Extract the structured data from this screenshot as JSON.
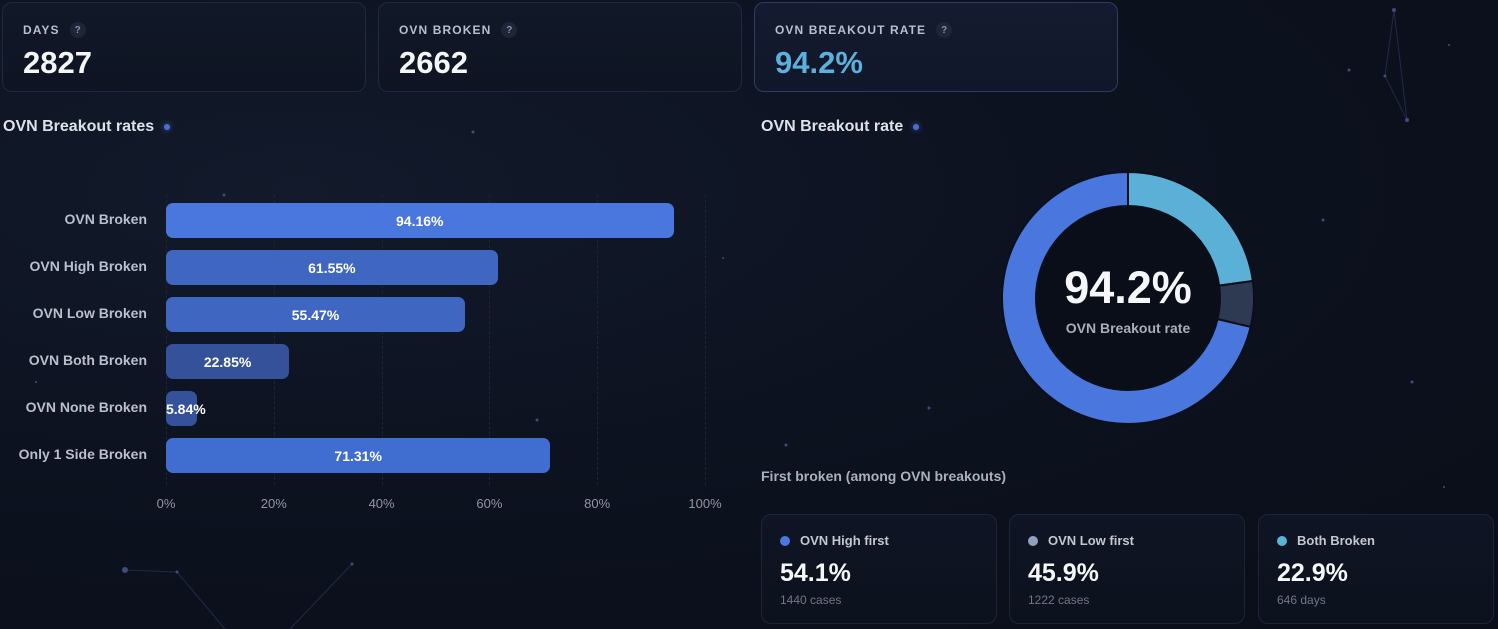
{
  "kpis": [
    {
      "label": "DAYS",
      "value": "2827",
      "help": "?"
    },
    {
      "label": "OVN BROKEN",
      "value": "2662",
      "help": "?"
    },
    {
      "label": "OVN BREAKOUT RATE",
      "value": "94.2%",
      "help": "?"
    }
  ],
  "bar_section": {
    "title": "OVN Breakout rates"
  },
  "donut_section": {
    "title": "OVN Breakout rate",
    "center_value": "94.2%",
    "center_label": "OVN Breakout rate"
  },
  "first_broken": {
    "title": "First broken (among OVN breakouts)",
    "cards": [
      {
        "label": "OVN High first",
        "value": "54.1%",
        "sub": "1440 cases",
        "dot_color": "#4b78e0"
      },
      {
        "label": "OVN Low first",
        "value": "45.9%",
        "sub": "1222 cases",
        "dot_color": "#8fa2bd"
      },
      {
        "label": "Both Broken",
        "value": "22.9%",
        "sub": "646 days",
        "dot_color": "#5ab3d8"
      }
    ]
  },
  "colors": {
    "accent": "#4b78e0",
    "highlight_value": "#5bb0dc",
    "background": "#0d1220"
  },
  "chart_data": [
    {
      "type": "bar",
      "orientation": "horizontal",
      "title": "OVN Breakout rates",
      "categories": [
        "OVN Broken",
        "OVN High Broken",
        "OVN Low Broken",
        "OVN Both Broken",
        "OVN None Broken",
        "Only 1 Side Broken"
      ],
      "values": [
        94.16,
        61.55,
        55.47,
        22.85,
        5.84,
        71.31
      ],
      "value_labels": [
        "94.16%",
        "61.55%",
        "55.47%",
        "22.85%",
        "5.84%",
        "71.31%"
      ],
      "bar_colors": [
        "#4a77de",
        "#3f67c2",
        "#3f67c2",
        "#34519a",
        "#34519a",
        "#3f6ed0"
      ],
      "xlim": [
        0,
        100
      ],
      "xticks": [
        "0%",
        "20%",
        "40%",
        "60%",
        "80%",
        "100%"
      ],
      "xlabel": "",
      "ylabel": "",
      "grid": true
    },
    {
      "type": "pie",
      "variant": "donut",
      "title": "OVN Breakout rate",
      "slices": [
        {
          "name": "Both Broken",
          "value": 22.85,
          "color": "#5ab0d6"
        },
        {
          "name": "None Broken",
          "value": 5.84,
          "color": "#2e3a52"
        },
        {
          "name": "Only 1 Side Broken",
          "value": 71.31,
          "color": "#4a77de"
        }
      ],
      "center_text": "94.2%"
    }
  ]
}
